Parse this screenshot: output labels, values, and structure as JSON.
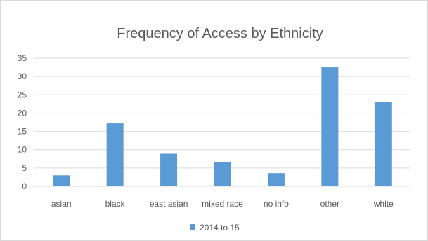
{
  "chart_data": {
    "type": "bar",
    "title": "Frequency of Access by Ethnicity",
    "categories": [
      "asian",
      "black",
      "east asian",
      "mixed race",
      "no info",
      "other",
      "white"
    ],
    "series": [
      {
        "name": "2014 to 15",
        "values": [
          3,
          17.2,
          8.9,
          6.7,
          3.6,
          32.5,
          23.1
        ],
        "color": "#5b9bd5"
      }
    ],
    "ylim": [
      0,
      35
    ],
    "yticks": [
      0,
      5,
      10,
      15,
      20,
      25,
      30,
      35
    ],
    "grid": true,
    "legend": "bottom",
    "gridline_color": "#d9d9d9",
    "text_color": "#595959"
  }
}
